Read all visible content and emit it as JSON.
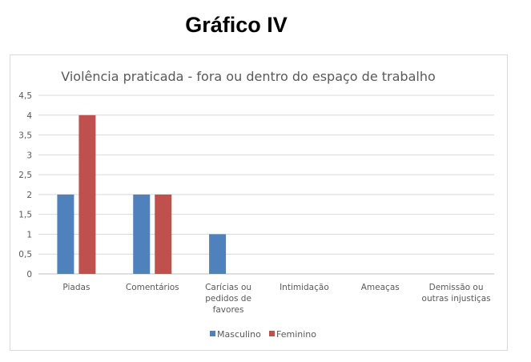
{
  "page": {
    "heading": "Gráfico IV"
  },
  "chart_data": {
    "type": "bar",
    "title": "Violência praticada - fora ou dentro do espaço de trabalho",
    "xlabel": "",
    "ylabel": "",
    "ylim": [
      0,
      4.5
    ],
    "yticks": [
      "0",
      "0,5",
      "1",
      "1,5",
      "2",
      "2,5",
      "3",
      "3,5",
      "4",
      "4,5"
    ],
    "grid": true,
    "legend_position": "bottom",
    "categories": [
      [
        "Piadas"
      ],
      [
        "Comentários"
      ],
      [
        "Carícias ou",
        "pedidos de",
        "favores"
      ],
      [
        "Intimidação"
      ],
      [
        "Ameaças"
      ],
      [
        "Demissão ou",
        "outras injustiças"
      ]
    ],
    "series": [
      {
        "name": "Masculino",
        "color": "#4f81bd",
        "values": [
          2,
          2,
          1,
          0,
          0,
          0
        ]
      },
      {
        "name": "Feminino",
        "color": "#c0504d",
        "values": [
          4,
          2,
          0,
          0,
          0,
          0
        ]
      }
    ]
  }
}
